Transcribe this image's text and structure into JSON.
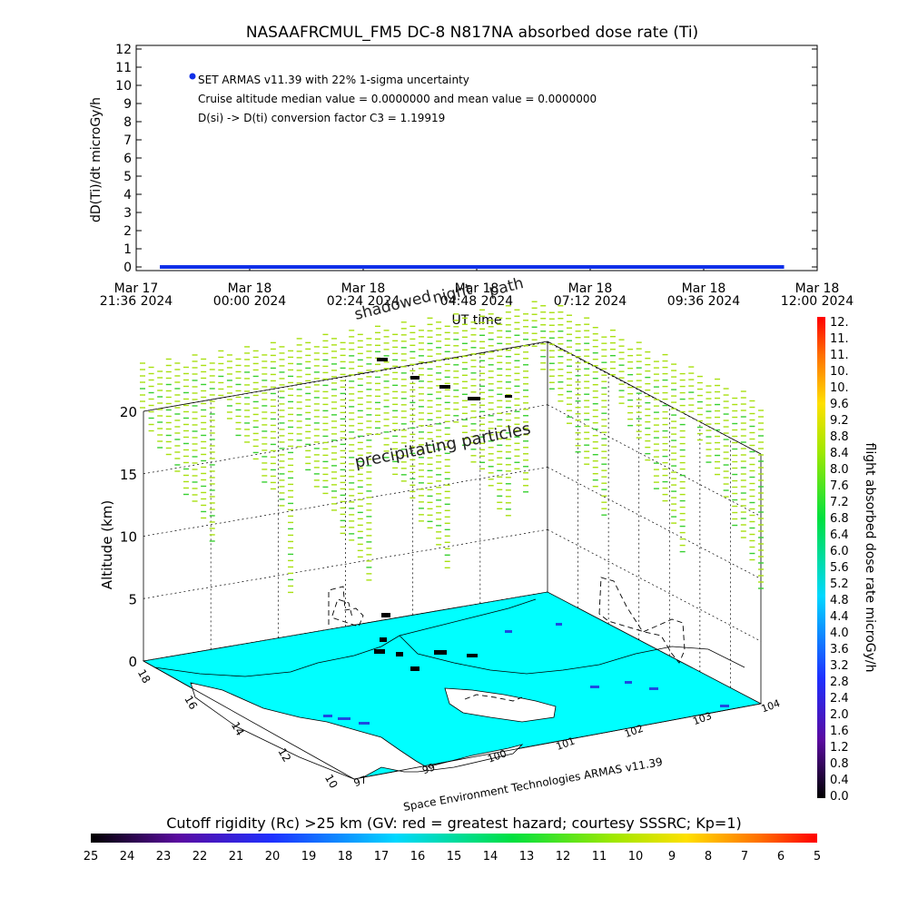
{
  "title": "NASAAFRCMUL_FM5 DC-8   N817NA absorbed dose rate (Ti)",
  "colors": {
    "series": "#1030e8",
    "land": "#00ffff",
    "shadow": "#dddddd",
    "particles": "#a8e010",
    "particles_alt": "#38d030",
    "coast": "#000000",
    "blue_patch": "#1e4ae0"
  },
  "chart_data": [
    {
      "type": "line",
      "ylabel": "dD(Ti)/dt microGy/h",
      "xlabel": "UT time",
      "ylim": [
        0,
        12
      ],
      "yticks": [
        "0",
        "1",
        "2",
        "3",
        "4",
        "5",
        "6",
        "7",
        "8",
        "9",
        "10",
        "11",
        "12"
      ],
      "xticks": [
        {
          "line1": "Mar 17",
          "line2": "21:36 2024"
        },
        {
          "line1": "Mar 18",
          "line2": "00:00 2024"
        },
        {
          "line1": "Mar 18",
          "line2": "02:24 2024"
        },
        {
          "line1": "Mar 18",
          "line2": "04:48 2024"
        },
        {
          "line1": "Mar 18",
          "line2": "07:12 2024"
        },
        {
          "line1": "Mar 18",
          "line2": "09:36 2024"
        },
        {
          "line1": "Mar 18",
          "line2": "12:00 2024"
        }
      ],
      "xrange_hours": [
        0,
        14.4
      ],
      "series": [
        {
          "x_hours_from_start": [
            0.5,
            13.7
          ],
          "values": [
            0,
            0
          ]
        }
      ],
      "legend_marker_value": 10.5,
      "annotations": [
        "SET ARMAS v11.39 with 22% 1-sigma uncertainty",
        "Cruise altitude median value = 0.0000000 and mean value = 0.0000000",
        "D(si) -> D(ti) conversion factor C3 = 1.19919"
      ]
    },
    {
      "type": "scatter",
      "zlabel": "Altitude (km)",
      "zticks": [
        "0",
        "5",
        "10",
        "15",
        "20"
      ],
      "ylabel_ticks": [
        "18",
        "16",
        "14",
        "12",
        "10"
      ],
      "xlabel_ticks": [
        "97",
        "99",
        "100",
        "101",
        "102",
        "103",
        "104"
      ],
      "overlay_labels": [
        "shadowed",
        "night",
        "path",
        "precipitating particles"
      ],
      "colorbar_right": {
        "label": "flight absorbed dose rate microGy/h",
        "ticks": [
          "12.",
          "11.",
          "11.",
          "10.",
          "10.",
          "9.6",
          "9.2",
          "8.8",
          "8.4",
          "8.0",
          "7.6",
          "7.2",
          "6.8",
          "6.4",
          "6.0",
          "5.6",
          "5.2",
          "4.8",
          "4.4",
          "4.0",
          "3.6",
          "3.2",
          "2.8",
          "2.4",
          "2.0",
          "1.6",
          "1.2",
          "0.8",
          "0.4",
          "0.0"
        ]
      },
      "colorbar_bottom": {
        "title": "Cutoff rigidity (Rc) >25 km (GV: red = greatest hazard; courtesy SSSRC; Kp=1)",
        "ticks": [
          "25",
          "24",
          "23",
          "22",
          "21",
          "20",
          "19",
          "18",
          "17",
          "16",
          "15",
          "14",
          "13",
          "12",
          "11",
          "10",
          "9",
          "8",
          "7",
          "6",
          "5"
        ]
      }
    }
  ],
  "credit": "Space Environment Technologies ARMAS v11.39"
}
